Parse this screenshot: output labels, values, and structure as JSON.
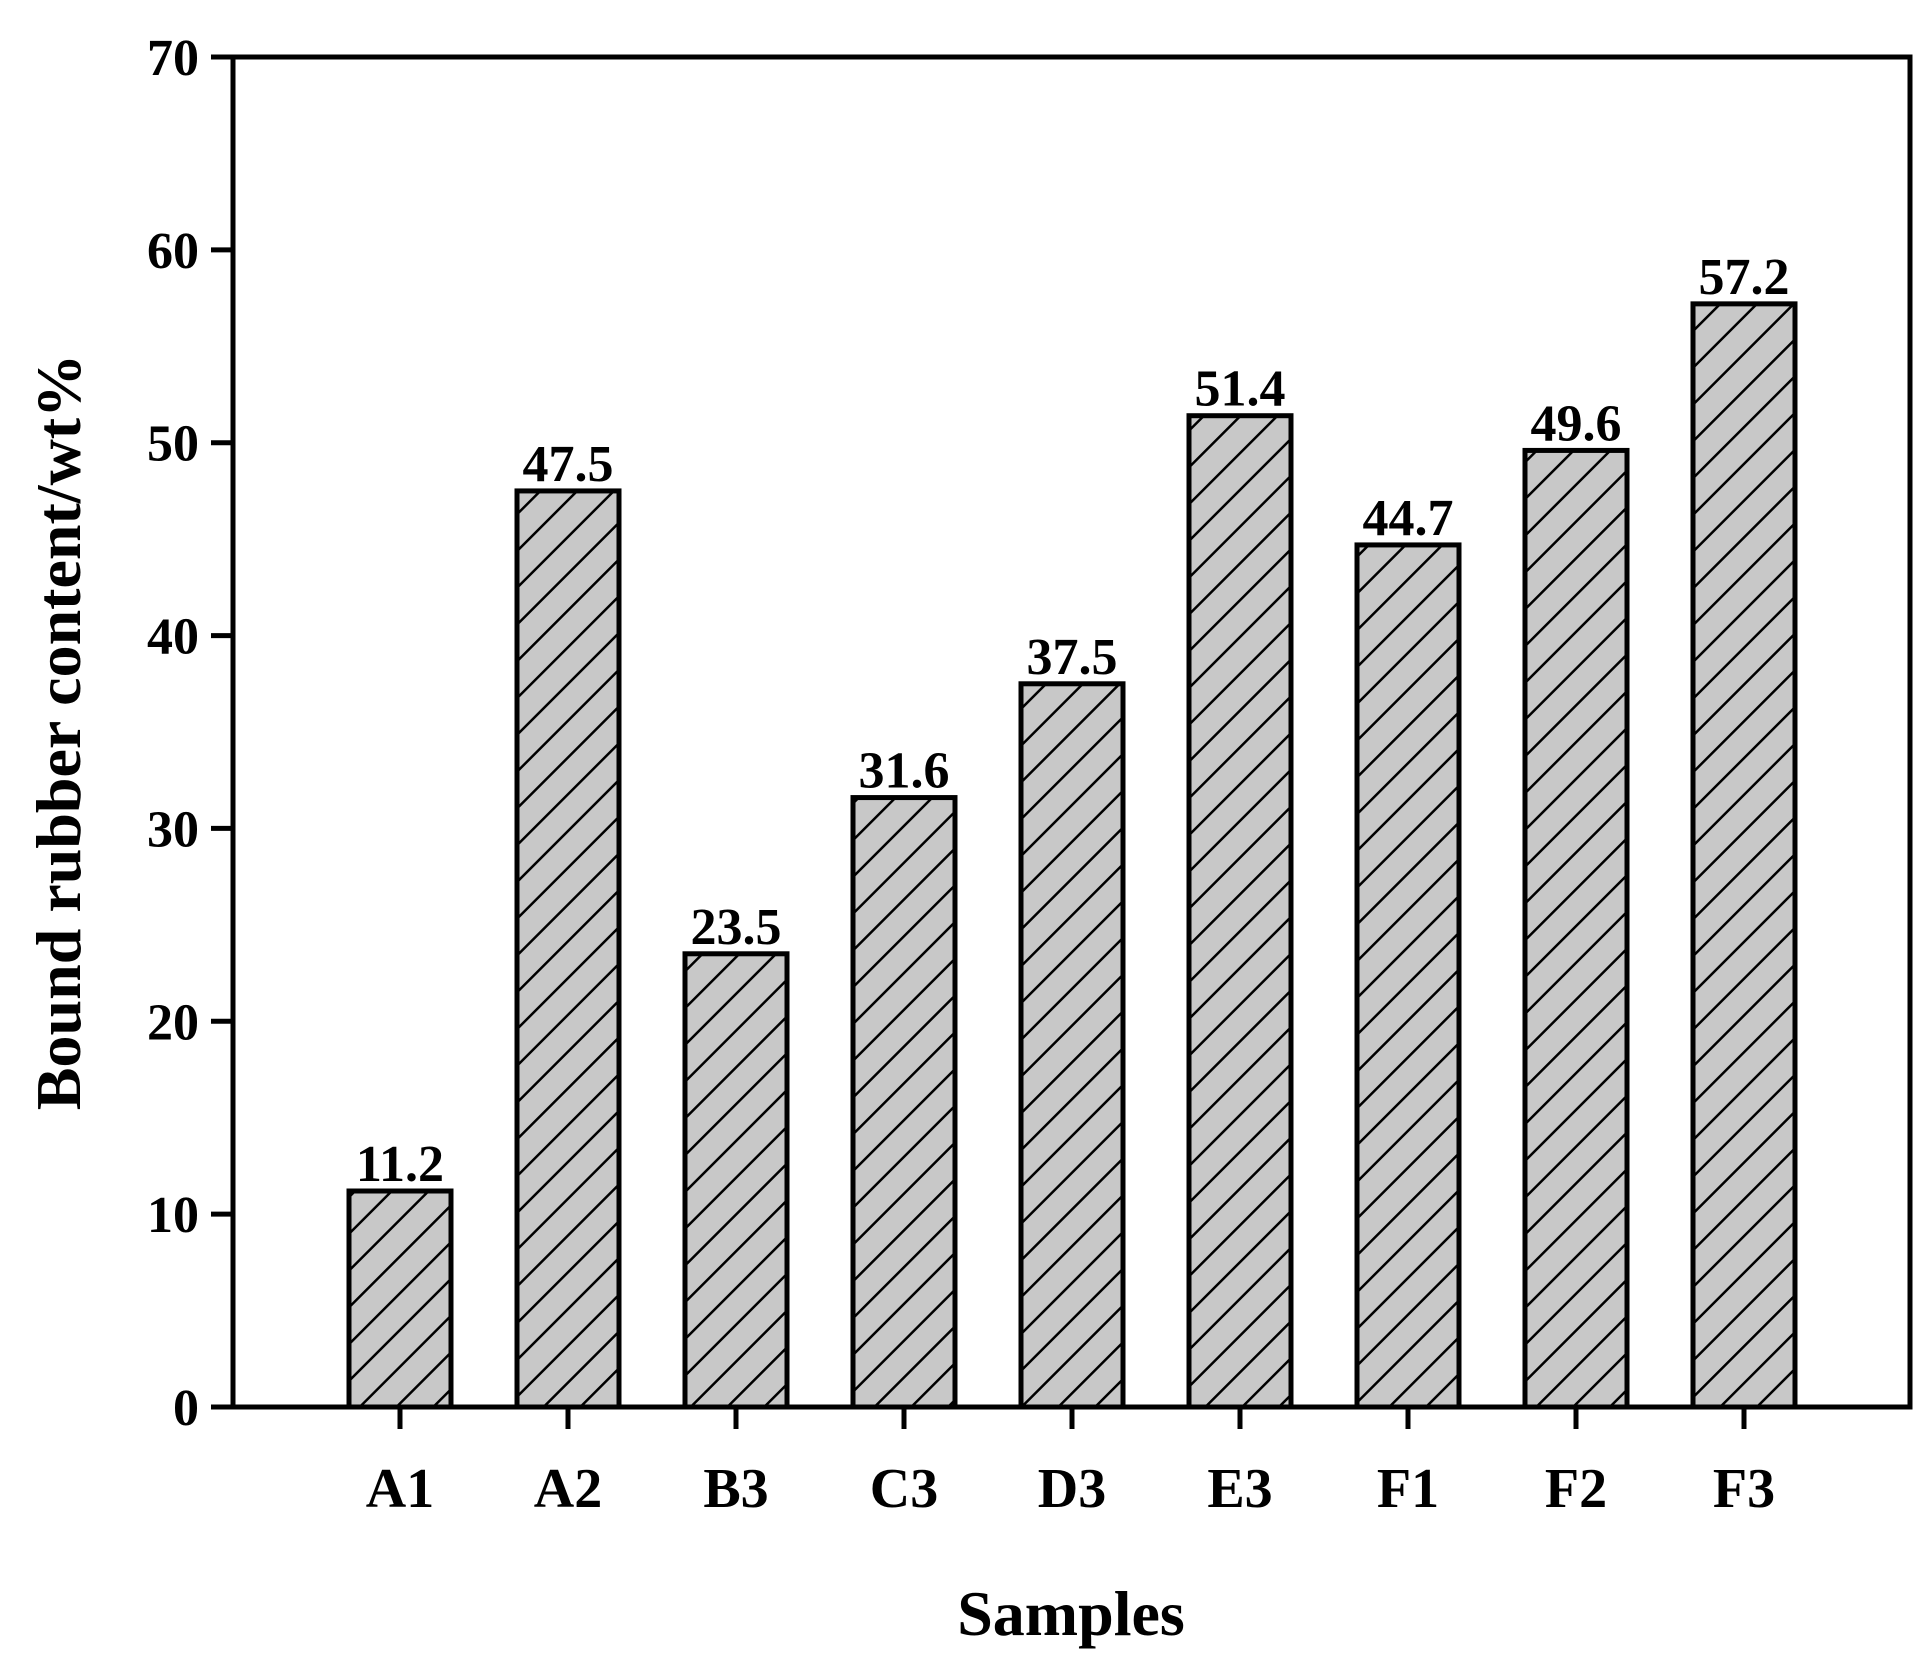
{
  "chart_data": {
    "type": "bar",
    "categories": [
      "A1",
      "A2",
      "B3",
      "C3",
      "D3",
      "E3",
      "F1",
      "F2",
      "F3"
    ],
    "values": [
      11.2,
      47.5,
      23.5,
      31.6,
      37.5,
      51.4,
      44.7,
      49.6,
      57.2
    ],
    "value_labels": [
      "11.2",
      "47.5",
      "23.5",
      "31.6",
      "37.5",
      "51.4",
      "44.7",
      "49.6",
      "57.2"
    ],
    "title": "",
    "xlabel": "Samples",
    "ylabel": "Bound rubber content/wt%",
    "ylim": [
      0,
      70
    ],
    "yticks": [
      0,
      10,
      20,
      30,
      40,
      50,
      60,
      70
    ],
    "ytick_labels": [
      "0",
      "10",
      "20",
      "30",
      "40",
      "50",
      "60",
      "70"
    ],
    "grid": false,
    "legend": "none",
    "bar_fill": "#c8c8c8",
    "bar_hatch": "diagonal",
    "bar_edge": "#000000"
  }
}
